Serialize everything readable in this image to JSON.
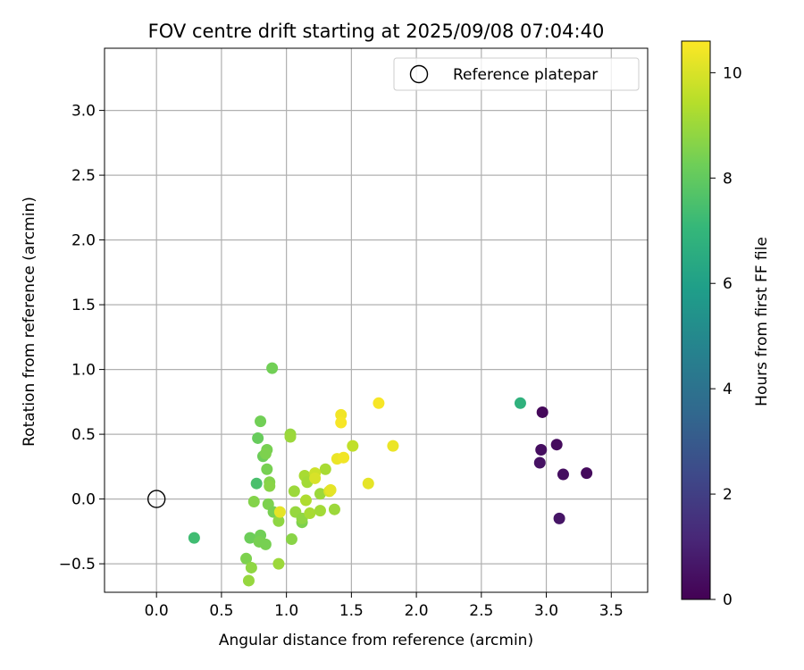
{
  "chart_data": {
    "type": "scatter",
    "title": "FOV centre drift starting at 2025/09/08 07:04:40",
    "xlabel": "Angular distance from reference (arcmin)",
    "ylabel": "Rotation from reference (arcmin)",
    "xlim": [
      -0.4,
      3.78
    ],
    "ylim": [
      -0.72,
      3.48
    ],
    "xticks": [
      0.0,
      0.5,
      1.0,
      1.5,
      2.0,
      2.5,
      3.0,
      3.5
    ],
    "xtick_labels": [
      "0.0",
      "0.5",
      "1.0",
      "1.5",
      "2.0",
      "2.5",
      "3.0",
      "3.5"
    ],
    "yticks": [
      -0.5,
      0.0,
      0.5,
      1.0,
      1.5,
      2.0,
      2.5,
      3.0
    ],
    "ytick_labels": [
      "−0.5",
      "0.0",
      "0.5",
      "1.0",
      "1.5",
      "2.0",
      "2.5",
      "3.0"
    ],
    "grid": true,
    "legend": {
      "placement": "top-right",
      "entries": [
        "Reference platepar"
      ]
    },
    "reference_point": {
      "label": "Reference platepar",
      "x": 0.0,
      "y": 0.0
    },
    "colorbar": {
      "label": "Hours from first FF file",
      "range": [
        0,
        10.6
      ],
      "ticks": [
        0,
        2,
        4,
        6,
        8,
        10
      ],
      "tick_labels": [
        "0",
        "2",
        "4",
        "6",
        "8",
        "10"
      ],
      "colormap": [
        "#440154",
        "#482878",
        "#3e4989",
        "#31688e",
        "#26828e",
        "#1f9e89",
        "#35b779",
        "#6ece58",
        "#b5de2b",
        "#fde725"
      ]
    },
    "points": [
      {
        "x": 2.97,
        "y": 0.67,
        "hours": 0.2
      },
      {
        "x": 3.08,
        "y": 0.42,
        "hours": 0.3
      },
      {
        "x": 2.96,
        "y": 0.38,
        "hours": 0.4
      },
      {
        "x": 2.95,
        "y": 0.28,
        "hours": 0.5
      },
      {
        "x": 3.13,
        "y": 0.19,
        "hours": 0.4
      },
      {
        "x": 3.31,
        "y": 0.2,
        "hours": 0.3
      },
      {
        "x": 3.1,
        "y": -0.15,
        "hours": 0.6
      },
      {
        "x": 2.8,
        "y": 0.74,
        "hours": 6.8
      },
      {
        "x": 0.29,
        "y": -0.3,
        "hours": 7.3
      },
      {
        "x": 0.77,
        "y": 0.12,
        "hours": 7.5
      },
      {
        "x": 0.89,
        "y": 1.01,
        "hours": 8.3
      },
      {
        "x": 0.8,
        "y": 0.6,
        "hours": 8.3
      },
      {
        "x": 0.78,
        "y": 0.47,
        "hours": 8.1
      },
      {
        "x": 0.85,
        "y": 0.38,
        "hours": 8.4
      },
      {
        "x": 0.82,
        "y": 0.33,
        "hours": 8.2
      },
      {
        "x": 0.84,
        "y": 0.35,
        "hours": 8.5
      },
      {
        "x": 0.85,
        "y": 0.23,
        "hours": 8.4
      },
      {
        "x": 0.87,
        "y": 0.13,
        "hours": 8.6
      },
      {
        "x": 0.87,
        "y": 0.1,
        "hours": 8.7
      },
      {
        "x": 0.75,
        "y": -0.02,
        "hours": 8.6
      },
      {
        "x": 0.86,
        "y": -0.04,
        "hours": 8.5
      },
      {
        "x": 0.9,
        "y": -0.1,
        "hours": 8.4
      },
      {
        "x": 0.94,
        "y": -0.17,
        "hours": 8.8
      },
      {
        "x": 0.72,
        "y": -0.3,
        "hours": 8.2
      },
      {
        "x": 0.8,
        "y": -0.28,
        "hours": 8.3
      },
      {
        "x": 0.79,
        "y": -0.33,
        "hours": 8.4
      },
      {
        "x": 0.84,
        "y": -0.35,
        "hours": 8.4
      },
      {
        "x": 0.69,
        "y": -0.46,
        "hours": 8.5
      },
      {
        "x": 0.73,
        "y": -0.53,
        "hours": 8.8
      },
      {
        "x": 0.71,
        "y": -0.63,
        "hours": 8.9
      },
      {
        "x": 0.94,
        "y": -0.5,
        "hours": 9.0
      },
      {
        "x": 1.03,
        "y": 0.5,
        "hours": 8.9
      },
      {
        "x": 1.03,
        "y": 0.48,
        "hours": 9.0
      },
      {
        "x": 1.06,
        "y": 0.06,
        "hours": 9.0
      },
      {
        "x": 1.07,
        "y": -0.1,
        "hours": 8.9
      },
      {
        "x": 1.04,
        "y": -0.31,
        "hours": 8.7
      },
      {
        "x": 1.12,
        "y": -0.18,
        "hours": 8.5
      },
      {
        "x": 1.12,
        "y": -0.15,
        "hours": 8.8
      },
      {
        "x": 1.14,
        "y": 0.18,
        "hours": 9.2
      },
      {
        "x": 1.16,
        "y": 0.13,
        "hours": 9.1
      },
      {
        "x": 1.15,
        "y": -0.01,
        "hours": 9.3
      },
      {
        "x": 1.18,
        "y": -0.11,
        "hours": 9.2
      },
      {
        "x": 1.26,
        "y": 0.04,
        "hours": 9.0
      },
      {
        "x": 1.26,
        "y": -0.09,
        "hours": 9.1
      },
      {
        "x": 1.3,
        "y": 0.23,
        "hours": 9.2
      },
      {
        "x": 1.22,
        "y": 0.2,
        "hours": 9.8
      },
      {
        "x": 1.22,
        "y": 0.16,
        "hours": 10.0
      },
      {
        "x": 0.95,
        "y": -0.1,
        "hours": 10.2
      },
      {
        "x": 1.33,
        "y": 0.06,
        "hours": 10.0
      },
      {
        "x": 1.34,
        "y": 0.07,
        "hours": 10.2
      },
      {
        "x": 1.37,
        "y": -0.08,
        "hours": 9.0
      },
      {
        "x": 1.39,
        "y": 0.31,
        "hours": 10.3
      },
      {
        "x": 1.44,
        "y": 0.32,
        "hours": 10.4
      },
      {
        "x": 1.42,
        "y": 0.65,
        "hours": 10.4
      },
      {
        "x": 1.42,
        "y": 0.59,
        "hours": 10.5
      },
      {
        "x": 1.51,
        "y": 0.41,
        "hours": 9.6
      },
      {
        "x": 1.63,
        "y": 0.12,
        "hours": 10.2
      },
      {
        "x": 1.71,
        "y": 0.74,
        "hours": 10.5
      },
      {
        "x": 1.82,
        "y": 0.41,
        "hours": 10.3
      }
    ]
  }
}
